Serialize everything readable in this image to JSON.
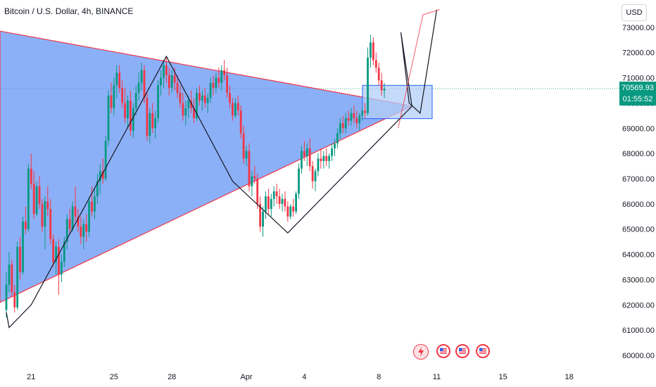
{
  "header": {
    "symbol_title": "Bitcoin / U.S. Dollar, 4h, BINANCE",
    "currency_button": "USD"
  },
  "last_price": {
    "price": "70569.93",
    "countdown": "01:55:52"
  },
  "events": [
    {
      "name": "flash-event-icon",
      "kind": "flash"
    },
    {
      "name": "us-flag-event-icon",
      "kind": "us-flag"
    },
    {
      "name": "us-flag-event-icon",
      "kind": "us-flag"
    },
    {
      "name": "us-flag-event-icon",
      "kind": "us-flag"
    }
  ],
  "colors": {
    "up": "#089981",
    "down": "#f23645",
    "triangle_fill": "#5b8ff5",
    "triangle_edge": "#f23645",
    "zigzag": "#131722",
    "box_fill": "#b3cdf7",
    "box_edge": "#2962ff",
    "axis_text": "#131722"
  },
  "chart_data": {
    "type": "candlestick",
    "title": "Bitcoin / U.S. Dollar, 4h, BINANCE",
    "y_axis": {
      "ticks": [
        60000,
        61000,
        62000,
        63000,
        64000,
        65000,
        66000,
        67000,
        68000,
        69000,
        70000,
        71000,
        72000,
        73000
      ],
      "tick_labels": [
        "60000.00",
        "61000.00",
        "62000.00",
        "63000.00",
        "64000.00",
        "65000.00",
        "66000.00",
        "67000.00",
        "68000.00",
        "69000.00",
        "70000.00",
        "71000.00",
        "72000.00",
        "73000.00"
      ],
      "range": [
        59700,
        73300
      ]
    },
    "x_axis": {
      "tick_labels": [
        "21",
        "25",
        "28",
        "Apr",
        "4",
        "8",
        "11",
        "15",
        "18"
      ],
      "tick_bar_index": [
        9,
        39,
        60,
        87,
        108,
        135,
        156,
        180,
        204
      ]
    },
    "last_price": 70569.93,
    "ohlc": [
      [
        61800,
        63300,
        61500,
        62800
      ],
      [
        62800,
        64100,
        62500,
        63600
      ],
      [
        63600,
        63800,
        62300,
        62500
      ],
      [
        62500,
        62800,
        61700,
        61900
      ],
      [
        61900,
        64500,
        61800,
        64300
      ],
      [
        64300,
        64700,
        63000,
        63300
      ],
      [
        63300,
        65500,
        63200,
        65300
      ],
      [
        65300,
        65900,
        64800,
        65000
      ],
      [
        65000,
        67600,
        64900,
        67400
      ],
      [
        67400,
        68000,
        66600,
        66800
      ],
      [
        66800,
        67300,
        65400,
        65600
      ],
      [
        65600,
        66900,
        65500,
        66700
      ],
      [
        66700,
        67100,
        65800,
        66000
      ],
      [
        66000,
        66200,
        64900,
        65100
      ],
      [
        65100,
        66300,
        64200,
        66100
      ],
      [
        66100,
        66700,
        65500,
        65800
      ],
      [
        65800,
        66200,
        64400,
        64600
      ],
      [
        64600,
        64800,
        63500,
        63700
      ],
      [
        63700,
        64500,
        63200,
        64300
      ],
      [
        64300,
        64600,
        62400,
        63200
      ],
      [
        63200,
        64000,
        62900,
        63700
      ],
      [
        63700,
        64700,
        63500,
        64500
      ],
      [
        64500,
        65600,
        64200,
        65400
      ],
      [
        65400,
        65800,
        64800,
        65000
      ],
      [
        65000,
        66100,
        64900,
        65900
      ],
      [
        65900,
        66700,
        65300,
        65500
      ],
      [
        65500,
        65800,
        64900,
        65100
      ],
      [
        65100,
        65500,
        64400,
        64700
      ],
      [
        64700,
        65400,
        64200,
        65200
      ],
      [
        65200,
        65600,
        64500,
        64900
      ],
      [
        64900,
        66300,
        64700,
        66100
      ],
      [
        66100,
        66700,
        65500,
        65700
      ],
      [
        65700,
        66600,
        65400,
        66300
      ],
      [
        66300,
        67200,
        66000,
        66900
      ],
      [
        66900,
        67600,
        66400,
        67300
      ],
      [
        67300,
        67800,
        66800,
        67000
      ],
      [
        67000,
        68700,
        66900,
        68500
      ],
      [
        68500,
        70500,
        68300,
        70300
      ],
      [
        70300,
        70800,
        69600,
        69800
      ],
      [
        69800,
        71000,
        69500,
        70700
      ],
      [
        70700,
        71500,
        70200,
        71200
      ],
      [
        71200,
        71500,
        70400,
        70600
      ],
      [
        70600,
        70900,
        69800,
        70000
      ],
      [
        70000,
        70600,
        69200,
        69400
      ],
      [
        69400,
        70300,
        69000,
        70100
      ],
      [
        70100,
        70500,
        68700,
        68900
      ],
      [
        68900,
        70000,
        68600,
        69800
      ],
      [
        69800,
        70700,
        69500,
        70400
      ],
      [
        70400,
        71200,
        70100,
        70800
      ],
      [
        70800,
        71600,
        70500,
        71300
      ],
      [
        71300,
        71500,
        70000,
        70200
      ],
      [
        70200,
        70400,
        68500,
        68700
      ],
      [
        68700,
        69800,
        68400,
        69600
      ],
      [
        69600,
        70000,
        68800,
        69000
      ],
      [
        69000,
        69700,
        68600,
        69400
      ],
      [
        69400,
        70900,
        69200,
        70700
      ],
      [
        70700,
        71300,
        70300,
        71000
      ],
      [
        71000,
        71700,
        70600,
        71500
      ],
      [
        71500,
        71800,
        70800,
        71100
      ],
      [
        71100,
        71400,
        70300,
        70600
      ],
      [
        70600,
        71300,
        70400,
        71100
      ],
      [
        71100,
        71400,
        70500,
        70800
      ],
      [
        70800,
        71100,
        70200,
        70400
      ],
      [
        70400,
        70700,
        69800,
        70000
      ],
      [
        70000,
        70400,
        69300,
        69500
      ],
      [
        69500,
        70100,
        69100,
        69800
      ],
      [
        69800,
        70300,
        69400,
        70100
      ],
      [
        70100,
        70500,
        69600,
        69800
      ],
      [
        69800,
        70200,
        69200,
        69400
      ],
      [
        69400,
        70600,
        69300,
        70400
      ],
      [
        70400,
        70700,
        69900,
        70100
      ],
      [
        70100,
        70500,
        69700,
        70300
      ],
      [
        70300,
        70600,
        69800,
        70000
      ],
      [
        70000,
        70400,
        69600,
        70200
      ],
      [
        70200,
        71000,
        70000,
        70800
      ],
      [
        70800,
        71100,
        70300,
        70600
      ],
      [
        70600,
        71200,
        70400,
        71000
      ],
      [
        71000,
        71400,
        70600,
        70800
      ],
      [
        70800,
        71500,
        70500,
        71300
      ],
      [
        71300,
        71700,
        70900,
        71100
      ],
      [
        71100,
        71400,
        70200,
        70400
      ],
      [
        70400,
        70700,
        69800,
        70000
      ],
      [
        70000,
        70200,
        69300,
        69500
      ],
      [
        69500,
        70200,
        69400,
        70000
      ],
      [
        70000,
        70300,
        69500,
        69700
      ],
      [
        69700,
        69900,
        68600,
        68800
      ],
      [
        68800,
        69100,
        67600,
        67800
      ],
      [
        67800,
        68300,
        67500,
        68100
      ],
      [
        68100,
        68400,
        66500,
        66700
      ],
      [
        66700,
        67300,
        66300,
        67100
      ],
      [
        67100,
        67500,
        66800,
        67000
      ],
      [
        67000,
        67200,
        65800,
        66000
      ],
      [
        66000,
        66300,
        64900,
        65100
      ],
      [
        65100,
        65900,
        64700,
        65700
      ],
      [
        65700,
        66500,
        65400,
        66300
      ],
      [
        66300,
        66600,
        65600,
        65800
      ],
      [
        65800,
        66400,
        65500,
        66200
      ],
      [
        66200,
        66700,
        65900,
        66500
      ],
      [
        66500,
        66800,
        66000,
        66300
      ],
      [
        66300,
        66600,
        65800,
        66000
      ],
      [
        66000,
        66400,
        65700,
        66200
      ],
      [
        66200,
        66500,
        65700,
        65900
      ],
      [
        65900,
        66100,
        65300,
        65500
      ],
      [
        65500,
        66000,
        65400,
        65900
      ],
      [
        65900,
        66200,
        65500,
        65700
      ],
      [
        65700,
        66500,
        65600,
        66400
      ],
      [
        66400,
        67600,
        66200,
        67400
      ],
      [
        67400,
        68300,
        67200,
        68100
      ],
      [
        68100,
        68500,
        67700,
        67900
      ],
      [
        67900,
        68400,
        67500,
        68200
      ],
      [
        68200,
        68600,
        67300,
        67500
      ],
      [
        67500,
        67700,
        66600,
        66900
      ],
      [
        66900,
        67400,
        66500,
        67300
      ],
      [
        67300,
        68000,
        67100,
        67800
      ],
      [
        67800,
        68200,
        67400,
        67700
      ],
      [
        67700,
        68100,
        67400,
        67900
      ],
      [
        67900,
        68200,
        67500,
        67700
      ],
      [
        67700,
        68000,
        67400,
        67900
      ],
      [
        67900,
        68400,
        67700,
        68200
      ],
      [
        68200,
        68600,
        67900,
        68400
      ],
      [
        68400,
        69000,
        68200,
        68800
      ],
      [
        68800,
        69400,
        68600,
        69200
      ],
      [
        69200,
        69500,
        68800,
        69000
      ],
      [
        69000,
        69600,
        68800,
        69400
      ],
      [
        69400,
        69700,
        69100,
        69300
      ],
      [
        69300,
        69800,
        69100,
        69600
      ],
      [
        69600,
        69900,
        69200,
        69400
      ],
      [
        69400,
        69700,
        69000,
        69200
      ],
      [
        69200,
        69600,
        68900,
        69500
      ],
      [
        69500,
        69800,
        69300,
        69700
      ],
      [
        69700,
        70000,
        69400,
        69600
      ],
      [
        69600,
        72200,
        69500,
        71800
      ],
      [
        71800,
        72700,
        71400,
        72400
      ],
      [
        72400,
        72600,
        71500,
        71700
      ],
      [
        71700,
        72000,
        71200,
        71400
      ],
      [
        71400,
        71600,
        70700,
        70900
      ],
      [
        70900,
        71200,
        70300,
        70500
      ],
      [
        70500,
        70800,
        70200,
        70570
      ]
    ]
  }
}
